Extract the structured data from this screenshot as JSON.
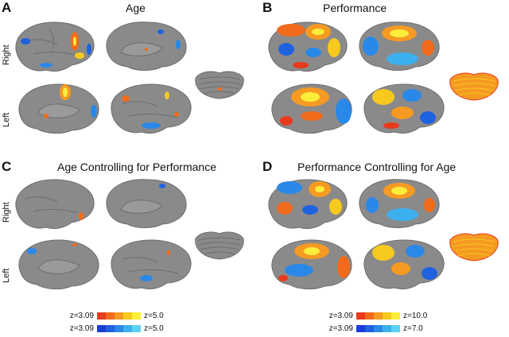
{
  "panels": [
    {
      "letter": "A",
      "title": "Age",
      "row_top": "Right",
      "row_bottom": "Left"
    },
    {
      "letter": "B",
      "title": "Performance"
    },
    {
      "letter": "C",
      "title": "Age Controlling for Performance",
      "row_top": "Right",
      "row_bottom": "Left"
    },
    {
      "letter": "D",
      "title": "Performance Controlling for Age"
    }
  ],
  "legend_left": {
    "warm_min": "z=3.09",
    "warm_max": "z=5.0",
    "cool_min": "z=3.09",
    "cool_max": "z=5.0"
  },
  "legend_right": {
    "warm_min": "z=3.09",
    "warm_max": "z=10.0",
    "cool_min": "z=3.09",
    "cool_max": "z=7.0"
  },
  "colors": {
    "cortex": "#8a8a8a",
    "cortex_dark": "#6d6d6d",
    "warm": [
      "#e83a1c",
      "#f26a1b",
      "#f59a22",
      "#f7c91f",
      "#fbee3a"
    ],
    "cool": [
      "#1b3fd6",
      "#1f62e0",
      "#2a88e8",
      "#3cb0ee",
      "#5bd2f2"
    ]
  }
}
